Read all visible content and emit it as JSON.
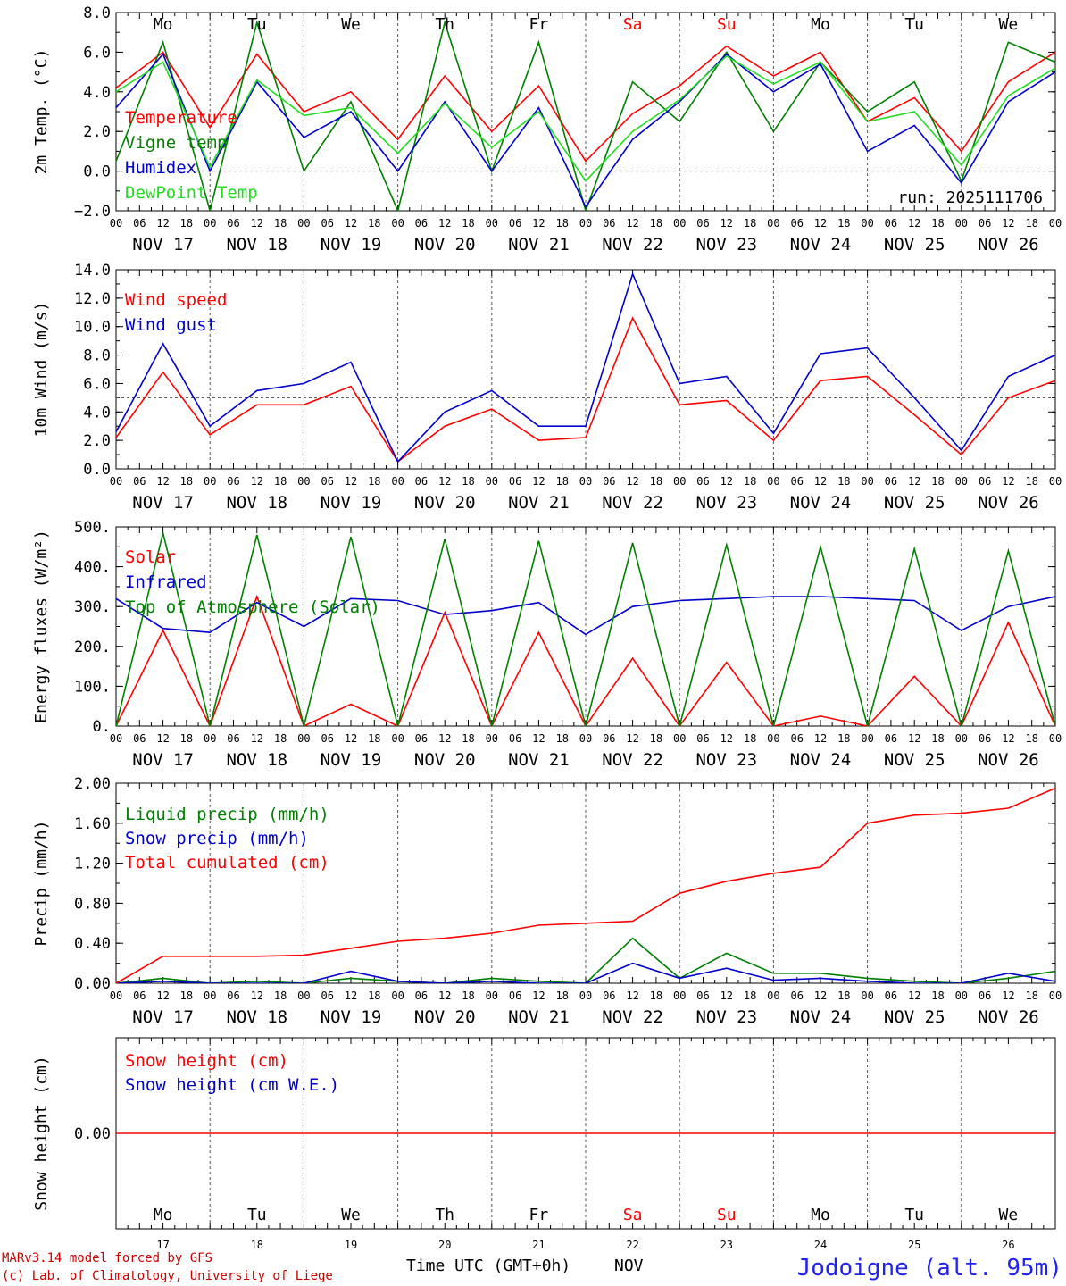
{
  "chart_data": [
    {
      "type": "line",
      "ylabel": "2m Temp. (°C)",
      "ylim": [
        -2,
        8
      ],
      "yticks": [
        "8.0",
        "6.0",
        "4.0",
        "2.0",
        "0.0",
        "−2.0"
      ],
      "yticks_values": [
        8,
        6,
        4,
        2,
        0,
        -2
      ],
      "reference_line": 0,
      "run_label": "run: 2025111706",
      "top_day_labels": [
        "Mo",
        "Tu",
        "We",
        "Th",
        "Fr",
        "Sa",
        "Su",
        "Mo",
        "Tu",
        "We"
      ],
      "x_hours": [
        0,
        12,
        24,
        36,
        48,
        60,
        72,
        84,
        96,
        108,
        120,
        132,
        144,
        156,
        168,
        180,
        192,
        204,
        216,
        228,
        240
      ],
      "legend": [
        {
          "name": "Temperature",
          "color": "#ff0000"
        },
        {
          "name": "Vigne temp",
          "color": "#007f00"
        },
        {
          "name": "Humidex",
          "color": "#0000cc"
        },
        {
          "name": "DewPoint Temp",
          "color": "#22dd22"
        }
      ],
      "series": [
        {
          "name": "Temperature",
          "color": "#ff0000",
          "values": [
            4.2,
            6.0,
            2.2,
            5.9,
            3.0,
            4.0,
            1.6,
            4.8,
            2.0,
            4.3,
            0.5,
            2.9,
            4.3,
            6.3,
            4.8,
            6.0,
            2.5,
            3.7,
            1.0,
            4.5,
            6.0
          ]
        },
        {
          "name": "Vigne temp",
          "color": "#007f00",
          "values": [
            0.5,
            6.5,
            -2.0,
            7.5,
            0.0,
            3.5,
            -2.0,
            7.5,
            0.0,
            6.5,
            -2.0,
            4.5,
            2.5,
            6.0,
            2.0,
            5.5,
            3.0,
            4.5,
            -0.5,
            6.5,
            5.5
          ]
        },
        {
          "name": "Humidex",
          "color": "#0000cc",
          "values": [
            3.2,
            5.9,
            0.0,
            4.5,
            1.7,
            3.0,
            0.0,
            3.5,
            0.0,
            3.2,
            -1.8,
            1.6,
            3.5,
            5.9,
            4.0,
            5.4,
            1.0,
            2.3,
            -0.6,
            3.5,
            5.0
          ]
        },
        {
          "name": "DewPoint Temp",
          "color": "#22dd22",
          "values": [
            4.0,
            5.5,
            0.2,
            4.6,
            2.8,
            3.2,
            0.9,
            3.4,
            1.2,
            3.0,
            -0.5,
            2.0,
            3.6,
            5.8,
            4.4,
            5.5,
            2.5,
            3.0,
            0.3,
            3.8,
            5.2
          ]
        }
      ]
    },
    {
      "type": "line",
      "ylabel": "10m Wind (m/s)",
      "ylim": [
        0,
        14
      ],
      "yticks": [
        "14.0",
        "12.0",
        "10.0",
        "8.0",
        "6.0",
        "4.0",
        "2.0",
        "0.0"
      ],
      "yticks_values": [
        14,
        12,
        10,
        8,
        6,
        4,
        2,
        0
      ],
      "reference_line": 5,
      "x_hours": [
        0,
        12,
        24,
        36,
        48,
        60,
        72,
        84,
        96,
        108,
        120,
        132,
        144,
        156,
        168,
        180,
        192,
        204,
        216,
        228,
        240
      ],
      "legend": [
        {
          "name": "Wind speed",
          "color": "#ff0000"
        },
        {
          "name": "Wind gust",
          "color": "#0000cc"
        }
      ],
      "series": [
        {
          "name": "Wind speed",
          "color": "#ff0000",
          "values": [
            2.2,
            6.8,
            2.4,
            4.5,
            4.5,
            5.8,
            0.5,
            3.0,
            4.2,
            2.0,
            2.2,
            10.6,
            4.5,
            4.8,
            2.0,
            6.2,
            6.5,
            3.8,
            1.0,
            5.0,
            6.2
          ]
        },
        {
          "name": "Wind gust",
          "color": "#0000cc",
          "values": [
            2.6,
            8.8,
            3.0,
            5.5,
            6.0,
            7.5,
            0.5,
            4.0,
            5.5,
            3.0,
            3.0,
            13.7,
            6.0,
            6.5,
            2.5,
            8.1,
            8.5,
            5.0,
            1.3,
            6.5,
            8.0
          ]
        }
      ]
    },
    {
      "type": "line",
      "ylabel": "Energy fluxes (W/m²)",
      "ylim": [
        0,
        500
      ],
      "yticks": [
        "500.",
        "400.",
        "300.",
        "200.",
        "100.",
        "0."
      ],
      "yticks_values": [
        500,
        400,
        300,
        200,
        100,
        0
      ],
      "x_hours": [
        0,
        12,
        24,
        36,
        48,
        60,
        72,
        84,
        96,
        108,
        120,
        132,
        144,
        156,
        168,
        180,
        192,
        204,
        216,
        228,
        240
      ],
      "legend": [
        {
          "name": "Solar",
          "color": "#ff0000"
        },
        {
          "name": "Infrared",
          "color": "#0000cc"
        },
        {
          "name": "Top of Atmosphere (Solar)",
          "color": "#007f00"
        }
      ],
      "series": [
        {
          "name": "Solar",
          "color": "#ff0000",
          "values": [
            0,
            240,
            0,
            325,
            0,
            55,
            0,
            285,
            0,
            235,
            0,
            170,
            0,
            160,
            0,
            25,
            0,
            125,
            0,
            260,
            0
          ]
        },
        {
          "name": "Infrared",
          "color": "#0000cc",
          "values": [
            320,
            245,
            235,
            310,
            250,
            320,
            315,
            280,
            290,
            310,
            230,
            300,
            315,
            320,
            325,
            325,
            320,
            315,
            240,
            300,
            325
          ]
        },
        {
          "name": "Top of Atmosphere (Solar)",
          "color": "#007f00",
          "values": [
            0,
            485,
            0,
            480,
            0,
            475,
            0,
            470,
            0,
            465,
            0,
            460,
            0,
            455,
            0,
            450,
            0,
            445,
            0,
            440,
            0
          ]
        }
      ]
    },
    {
      "type": "line",
      "ylabel": "Precip (mm/h)",
      "ylim": [
        0,
        2
      ],
      "yticks": [
        "2.00",
        "1.60",
        "1.20",
        "0.80",
        "0.40",
        "0.00"
      ],
      "yticks_values": [
        2.0,
        1.6,
        1.2,
        0.8,
        0.4,
        0.0
      ],
      "x_hours": [
        0,
        12,
        24,
        36,
        48,
        60,
        72,
        84,
        96,
        108,
        120,
        132,
        144,
        156,
        168,
        180,
        192,
        204,
        216,
        228,
        240
      ],
      "legend": [
        {
          "name": "Liquid precip (mm/h)",
          "color": "#007f00"
        },
        {
          "name": "Snow precip (mm/h)",
          "color": "#0000cc"
        },
        {
          "name": "Total cumulated (cm)",
          "color": "#ff0000"
        }
      ],
      "series": [
        {
          "name": "Liquid precip (mm/h)",
          "color": "#007f00",
          "values": [
            0.0,
            0.05,
            0.0,
            0.02,
            0.0,
            0.05,
            0.02,
            0.0,
            0.05,
            0.02,
            0.0,
            0.45,
            0.05,
            0.3,
            0.1,
            0.1,
            0.05,
            0.02,
            0.0,
            0.05,
            0.12
          ]
        },
        {
          "name": "Snow precip (mm/h)",
          "color": "#0000cc",
          "values": [
            0.0,
            0.02,
            0.0,
            0.0,
            0.0,
            0.12,
            0.02,
            0.0,
            0.02,
            0.0,
            0.0,
            0.2,
            0.05,
            0.15,
            0.03,
            0.05,
            0.02,
            0.0,
            0.0,
            0.1,
            0.02
          ]
        },
        {
          "name": "Total cumulated (cm)",
          "color": "#ff0000",
          "values": [
            0.0,
            0.27,
            0.27,
            0.27,
            0.28,
            0.35,
            0.42,
            0.45,
            0.5,
            0.58,
            0.6,
            0.62,
            0.9,
            1.02,
            1.1,
            1.16,
            1.6,
            1.68,
            1.7,
            1.75,
            1.95
          ]
        }
      ]
    },
    {
      "type": "line",
      "ylabel": "Snow height (cm)",
      "ylim": [
        -1,
        1
      ],
      "yticks": [
        "0.00"
      ],
      "yticks_values": [
        0.0
      ],
      "x_hours": [
        0,
        240
      ],
      "legend": [
        {
          "name": "Snow height (cm)",
          "color": "#ff0000"
        },
        {
          "name": "Snow height (cm W.E.)",
          "color": "#0000cc"
        }
      ],
      "series": [
        {
          "name": "Snow height (cm)",
          "color": "#ff0000",
          "values": [
            0.0,
            0.0
          ]
        }
      ],
      "day_names": [
        "Mo",
        "Tu",
        "We",
        "Th",
        "Fr",
        "Sa",
        "Su",
        "Mo",
        "Tu",
        "We"
      ],
      "day_numbers": [
        "17",
        "18",
        "19",
        "20",
        "21",
        "22",
        "23",
        "24",
        "25",
        "26"
      ]
    }
  ],
  "axis": {
    "hour_ticks": [
      "00",
      "06",
      "12",
      "18"
    ],
    "final_hour_tick": "00",
    "date_labels": [
      "NOV 17",
      "NOV 18",
      "NOV 19",
      "NOV 20",
      "NOV 21",
      "NOV 22",
      "NOV 23",
      "NOV 24",
      "NOV 25",
      "NOV 26"
    ],
    "weekend_color": "#ff0000"
  },
  "footer": {
    "model_line": "MARv3.14 model forced by GFS",
    "credit_line": "(c) Lab. of Climatology, University of Liege",
    "time_label": "Time UTC (GMT+0h)",
    "month_label": "NOV",
    "station": "Jodoigne (alt. 95m)"
  }
}
